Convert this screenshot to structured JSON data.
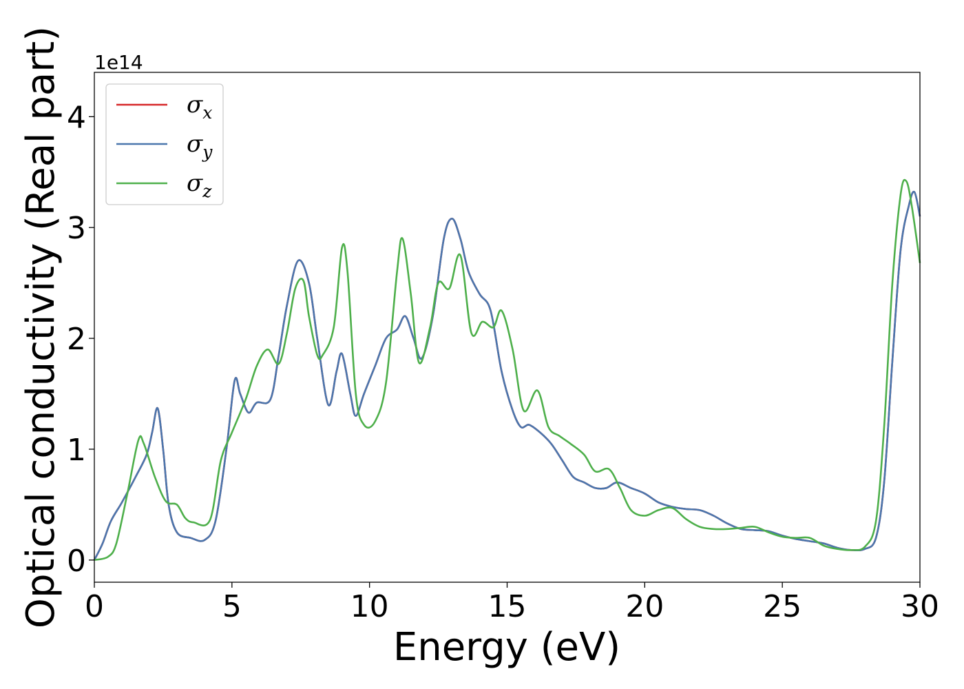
{
  "chart_data": {
    "type": "line",
    "xlabel": "Energy (eV)",
    "ylabel": "Optical conductivity (Real part)",
    "y_offset_label": "1e14",
    "xlim": [
      0,
      30
    ],
    "ylim": [
      -0.2,
      4.4
    ],
    "x_ticks": [
      0,
      5,
      10,
      15,
      20,
      25,
      30
    ],
    "x_tick_labels": [
      "0",
      "5",
      "10",
      "15",
      "20",
      "25",
      "30"
    ],
    "y_ticks": [
      0,
      1,
      2,
      3,
      4
    ],
    "y_tick_labels": [
      "0",
      "1",
      "2",
      "3",
      "4"
    ],
    "grid": false,
    "legend_position": "top-left",
    "series": [
      {
        "name": "σ_x",
        "base": "σ",
        "sub": "x",
        "color": "#d62728",
        "points": [
          [
            0,
            0
          ],
          [
            0.3,
            0.15
          ],
          [
            0.6,
            0.35
          ],
          [
            1.0,
            0.52
          ],
          [
            1.5,
            0.75
          ],
          [
            1.9,
            0.95
          ],
          [
            2.1,
            1.15
          ],
          [
            2.3,
            1.37
          ],
          [
            2.5,
            1.0
          ],
          [
            2.7,
            0.5
          ],
          [
            3.0,
            0.25
          ],
          [
            3.5,
            0.2
          ],
          [
            4.0,
            0.18
          ],
          [
            4.4,
            0.35
          ],
          [
            4.8,
            1.0
          ],
          [
            5.1,
            1.62
          ],
          [
            5.3,
            1.5
          ],
          [
            5.6,
            1.33
          ],
          [
            5.9,
            1.42
          ],
          [
            6.4,
            1.45
          ],
          [
            6.7,
            1.85
          ],
          [
            7.0,
            2.3
          ],
          [
            7.4,
            2.7
          ],
          [
            7.8,
            2.5
          ],
          [
            8.1,
            2.0
          ],
          [
            8.5,
            1.4
          ],
          [
            8.8,
            1.7
          ],
          [
            9.0,
            1.86
          ],
          [
            9.3,
            1.5
          ],
          [
            9.5,
            1.3
          ],
          [
            9.8,
            1.5
          ],
          [
            10.2,
            1.75
          ],
          [
            10.6,
            2.0
          ],
          [
            11.0,
            2.08
          ],
          [
            11.3,
            2.2
          ],
          [
            11.6,
            2.0
          ],
          [
            11.9,
            1.82
          ],
          [
            12.3,
            2.2
          ],
          [
            12.7,
            2.9
          ],
          [
            13.0,
            3.08
          ],
          [
            13.3,
            2.9
          ],
          [
            13.6,
            2.6
          ],
          [
            14.0,
            2.4
          ],
          [
            14.4,
            2.25
          ],
          [
            14.8,
            1.7
          ],
          [
            15.2,
            1.35
          ],
          [
            15.5,
            1.2
          ],
          [
            15.8,
            1.22
          ],
          [
            16.2,
            1.15
          ],
          [
            16.6,
            1.05
          ],
          [
            17.0,
            0.9
          ],
          [
            17.4,
            0.75
          ],
          [
            17.8,
            0.7
          ],
          [
            18.2,
            0.65
          ],
          [
            18.6,
            0.65
          ],
          [
            19.0,
            0.7
          ],
          [
            19.5,
            0.65
          ],
          [
            20.0,
            0.6
          ],
          [
            20.5,
            0.52
          ],
          [
            21.0,
            0.48
          ],
          [
            21.5,
            0.46
          ],
          [
            22.0,
            0.45
          ],
          [
            22.5,
            0.4
          ],
          [
            23.0,
            0.33
          ],
          [
            23.5,
            0.28
          ],
          [
            24.0,
            0.27
          ],
          [
            24.5,
            0.26
          ],
          [
            25.0,
            0.22
          ],
          [
            25.5,
            0.19
          ],
          [
            26.0,
            0.17
          ],
          [
            26.5,
            0.15
          ],
          [
            27.0,
            0.11
          ],
          [
            27.5,
            0.09
          ],
          [
            28.0,
            0.1
          ],
          [
            28.4,
            0.2
          ],
          [
            28.7,
            0.7
          ],
          [
            29.0,
            1.8
          ],
          [
            29.3,
            2.8
          ],
          [
            29.6,
            3.2
          ],
          [
            29.8,
            3.32
          ],
          [
            30.0,
            3.1
          ]
        ]
      },
      {
        "name": "σ_y",
        "base": "σ",
        "sub": "y",
        "color": "#4a76ad",
        "points": [
          [
            0,
            0
          ],
          [
            0.3,
            0.15
          ],
          [
            0.6,
            0.35
          ],
          [
            1.0,
            0.52
          ],
          [
            1.5,
            0.75
          ],
          [
            1.9,
            0.95
          ],
          [
            2.1,
            1.15
          ],
          [
            2.3,
            1.37
          ],
          [
            2.5,
            1.0
          ],
          [
            2.7,
            0.5
          ],
          [
            3.0,
            0.25
          ],
          [
            3.5,
            0.2
          ],
          [
            4.0,
            0.18
          ],
          [
            4.4,
            0.35
          ],
          [
            4.8,
            1.0
          ],
          [
            5.1,
            1.62
          ],
          [
            5.3,
            1.5
          ],
          [
            5.6,
            1.33
          ],
          [
            5.9,
            1.42
          ],
          [
            6.4,
            1.45
          ],
          [
            6.7,
            1.85
          ],
          [
            7.0,
            2.3
          ],
          [
            7.4,
            2.7
          ],
          [
            7.8,
            2.5
          ],
          [
            8.1,
            2.0
          ],
          [
            8.5,
            1.4
          ],
          [
            8.8,
            1.7
          ],
          [
            9.0,
            1.86
          ],
          [
            9.3,
            1.5
          ],
          [
            9.5,
            1.3
          ],
          [
            9.8,
            1.5
          ],
          [
            10.2,
            1.75
          ],
          [
            10.6,
            2.0
          ],
          [
            11.0,
            2.08
          ],
          [
            11.3,
            2.2
          ],
          [
            11.6,
            2.0
          ],
          [
            11.9,
            1.82
          ],
          [
            12.3,
            2.2
          ],
          [
            12.7,
            2.9
          ],
          [
            13.0,
            3.08
          ],
          [
            13.3,
            2.9
          ],
          [
            13.6,
            2.6
          ],
          [
            14.0,
            2.4
          ],
          [
            14.4,
            2.25
          ],
          [
            14.8,
            1.7
          ],
          [
            15.2,
            1.35
          ],
          [
            15.5,
            1.2
          ],
          [
            15.8,
            1.22
          ],
          [
            16.2,
            1.15
          ],
          [
            16.6,
            1.05
          ],
          [
            17.0,
            0.9
          ],
          [
            17.4,
            0.75
          ],
          [
            17.8,
            0.7
          ],
          [
            18.2,
            0.65
          ],
          [
            18.6,
            0.65
          ],
          [
            19.0,
            0.7
          ],
          [
            19.5,
            0.65
          ],
          [
            20.0,
            0.6
          ],
          [
            20.5,
            0.52
          ],
          [
            21.0,
            0.48
          ],
          [
            21.5,
            0.46
          ],
          [
            22.0,
            0.45
          ],
          [
            22.5,
            0.4
          ],
          [
            23.0,
            0.33
          ],
          [
            23.5,
            0.28
          ],
          [
            24.0,
            0.27
          ],
          [
            24.5,
            0.26
          ],
          [
            25.0,
            0.22
          ],
          [
            25.5,
            0.19
          ],
          [
            26.0,
            0.17
          ],
          [
            26.5,
            0.15
          ],
          [
            27.0,
            0.11
          ],
          [
            27.5,
            0.09
          ],
          [
            28.0,
            0.1
          ],
          [
            28.4,
            0.2
          ],
          [
            28.7,
            0.7
          ],
          [
            29.0,
            1.8
          ],
          [
            29.3,
            2.8
          ],
          [
            29.6,
            3.2
          ],
          [
            29.8,
            3.32
          ],
          [
            30.0,
            3.1
          ]
        ]
      },
      {
        "name": "σ_z",
        "base": "σ",
        "sub": "z",
        "color": "#4daf4a",
        "points": [
          [
            0,
            0
          ],
          [
            0.5,
            0.03
          ],
          [
            0.8,
            0.15
          ],
          [
            1.2,
            0.6
          ],
          [
            1.6,
            1.08
          ],
          [
            1.8,
            1.05
          ],
          [
            2.2,
            0.75
          ],
          [
            2.6,
            0.53
          ],
          [
            3.0,
            0.5
          ],
          [
            3.3,
            0.38
          ],
          [
            3.6,
            0.34
          ],
          [
            4.2,
            0.36
          ],
          [
            4.6,
            0.9
          ],
          [
            5.0,
            1.15
          ],
          [
            5.5,
            1.45
          ],
          [
            5.9,
            1.75
          ],
          [
            6.3,
            1.9
          ],
          [
            6.7,
            1.77
          ],
          [
            7.0,
            2.05
          ],
          [
            7.3,
            2.45
          ],
          [
            7.6,
            2.52
          ],
          [
            7.8,
            2.2
          ],
          [
            8.1,
            1.85
          ],
          [
            8.3,
            1.85
          ],
          [
            8.7,
            2.1
          ],
          [
            9.0,
            2.82
          ],
          [
            9.2,
            2.6
          ],
          [
            9.5,
            1.5
          ],
          [
            9.8,
            1.22
          ],
          [
            10.2,
            1.25
          ],
          [
            10.6,
            1.6
          ],
          [
            11.0,
            2.6
          ],
          [
            11.2,
            2.9
          ],
          [
            11.5,
            2.4
          ],
          [
            11.8,
            1.78
          ],
          [
            12.2,
            2.1
          ],
          [
            12.5,
            2.5
          ],
          [
            12.9,
            2.45
          ],
          [
            13.3,
            2.75
          ],
          [
            13.7,
            2.05
          ],
          [
            14.1,
            2.15
          ],
          [
            14.5,
            2.1
          ],
          [
            14.8,
            2.25
          ],
          [
            15.2,
            1.9
          ],
          [
            15.6,
            1.35
          ],
          [
            16.1,
            1.53
          ],
          [
            16.5,
            1.2
          ],
          [
            16.9,
            1.12
          ],
          [
            17.3,
            1.05
          ],
          [
            17.8,
            0.95
          ],
          [
            18.2,
            0.8
          ],
          [
            18.7,
            0.82
          ],
          [
            19.1,
            0.65
          ],
          [
            19.5,
            0.45
          ],
          [
            20.0,
            0.4
          ],
          [
            20.5,
            0.45
          ],
          [
            21.0,
            0.47
          ],
          [
            21.5,
            0.37
          ],
          [
            22.0,
            0.3
          ],
          [
            22.5,
            0.28
          ],
          [
            23.0,
            0.28
          ],
          [
            23.5,
            0.29
          ],
          [
            24.0,
            0.3
          ],
          [
            24.5,
            0.25
          ],
          [
            25.0,
            0.21
          ],
          [
            25.5,
            0.2
          ],
          [
            26.0,
            0.2
          ],
          [
            26.5,
            0.13
          ],
          [
            27.0,
            0.1
          ],
          [
            27.5,
            0.09
          ],
          [
            28.0,
            0.12
          ],
          [
            28.4,
            0.35
          ],
          [
            28.7,
            1.2
          ],
          [
            29.0,
            2.5
          ],
          [
            29.3,
            3.3
          ],
          [
            29.5,
            3.42
          ],
          [
            29.7,
            3.2
          ],
          [
            30.0,
            2.68
          ]
        ]
      }
    ]
  }
}
